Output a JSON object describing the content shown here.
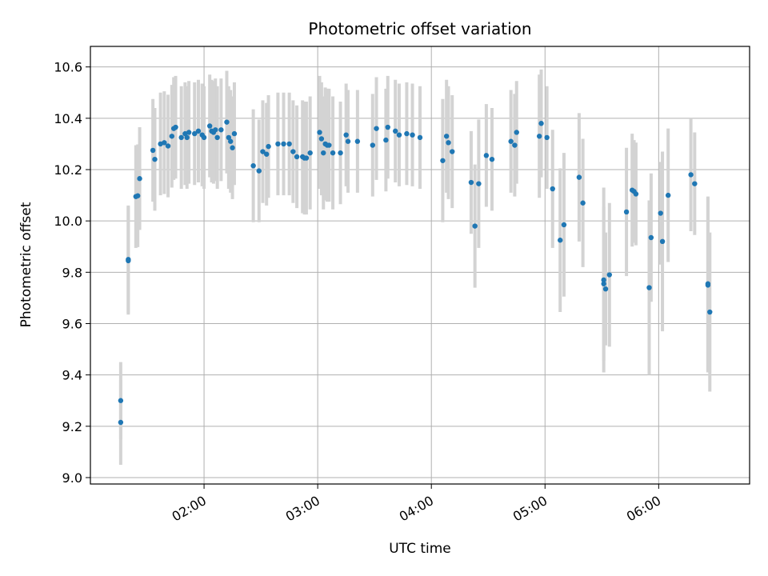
{
  "chart_data": {
    "type": "scatter",
    "title": "Photometric offset variation",
    "xlabel": "UTC time",
    "ylabel": "Photometric offset",
    "x_unit": "UTC time (HH:MM)",
    "xlim": [
      "01:00",
      "06:48"
    ],
    "ylim": [
      8.975,
      10.68
    ],
    "x_ticks": [
      "02:00",
      "03:00",
      "04:00",
      "05:00",
      "06:00"
    ],
    "y_ticks": [
      "9.0",
      "9.2",
      "9.4",
      "9.6",
      "9.8",
      "10.0",
      "10.2",
      "10.4",
      "10.6"
    ],
    "grid": true,
    "legend": "none",
    "colors": {
      "point": "#1f77b4",
      "errorbar": "#d3d3d3",
      "grid": "#b0b0b0"
    },
    "series": [
      {
        "marker": "point",
        "error_bars": "vertical",
        "points": [
          {
            "x": "01:16",
            "y": 9.215,
            "err": 0.165
          },
          {
            "x": "01:16",
            "y": 9.3,
            "err": 0.15
          },
          {
            "x": "01:20",
            "y": 9.845,
            "err": 0.21
          },
          {
            "x": "01:20",
            "y": 9.85,
            "err": 0.21
          },
          {
            "x": "01:24",
            "y": 10.095,
            "err": 0.2
          },
          {
            "x": "01:25",
            "y": 10.098,
            "err": 0.2
          },
          {
            "x": "01:26",
            "y": 10.165,
            "err": 0.2
          },
          {
            "x": "01:33",
            "y": 10.275,
            "err": 0.2
          },
          {
            "x": "01:34",
            "y": 10.24,
            "err": 0.2
          },
          {
            "x": "01:37",
            "y": 10.3,
            "err": 0.2
          },
          {
            "x": "01:39",
            "y": 10.305,
            "err": 0.2
          },
          {
            "x": "01:41",
            "y": 10.292,
            "err": 0.2
          },
          {
            "x": "01:43",
            "y": 10.33,
            "err": 0.2
          },
          {
            "x": "01:44",
            "y": 10.36,
            "err": 0.2
          },
          {
            "x": "01:45",
            "y": 10.365,
            "err": 0.2
          },
          {
            "x": "01:48",
            "y": 10.325,
            "err": 0.2
          },
          {
            "x": "01:50",
            "y": 10.34,
            "err": 0.2
          },
          {
            "x": "01:51",
            "y": 10.325,
            "err": 0.2
          },
          {
            "x": "01:52",
            "y": 10.345,
            "err": 0.2
          },
          {
            "x": "01:55",
            "y": 10.34,
            "err": 0.2
          },
          {
            "x": "01:57",
            "y": 10.35,
            "err": 0.2
          },
          {
            "x": "01:59",
            "y": 10.335,
            "err": 0.2
          },
          {
            "x": "02:00",
            "y": 10.325,
            "err": 0.2
          },
          {
            "x": "02:03",
            "y": 10.37,
            "err": 0.2
          },
          {
            "x": "02:04",
            "y": 10.35,
            "err": 0.2
          },
          {
            "x": "02:05",
            "y": 10.345,
            "err": 0.2
          },
          {
            "x": "02:06",
            "y": 10.355,
            "err": 0.2
          },
          {
            "x": "02:07",
            "y": 10.325,
            "err": 0.2
          },
          {
            "x": "02:09",
            "y": 10.355,
            "err": 0.2
          },
          {
            "x": "02:12",
            "y": 10.385,
            "err": 0.2
          },
          {
            "x": "02:13",
            "y": 10.325,
            "err": 0.2
          },
          {
            "x": "02:14",
            "y": 10.31,
            "err": 0.2
          },
          {
            "x": "02:15",
            "y": 10.285,
            "err": 0.2
          },
          {
            "x": "02:16",
            "y": 10.34,
            "err": 0.2
          },
          {
            "x": "02:26",
            "y": 10.215,
            "err": 0.22
          },
          {
            "x": "02:29",
            "y": 10.195,
            "err": 0.2
          },
          {
            "x": "02:31",
            "y": 10.27,
            "err": 0.2
          },
          {
            "x": "02:33",
            "y": 10.26,
            "err": 0.2
          },
          {
            "x": "02:34",
            "y": 10.29,
            "err": 0.2
          },
          {
            "x": "02:39",
            "y": 10.3,
            "err": 0.2
          },
          {
            "x": "02:42",
            "y": 10.3,
            "err": 0.2
          },
          {
            "x": "02:45",
            "y": 10.3,
            "err": 0.2
          },
          {
            "x": "02:47",
            "y": 10.27,
            "err": 0.2
          },
          {
            "x": "02:49",
            "y": 10.25,
            "err": 0.2
          },
          {
            "x": "02:52",
            "y": 10.25,
            "err": 0.22
          },
          {
            "x": "02:53",
            "y": 10.245,
            "err": 0.22
          },
          {
            "x": "02:54",
            "y": 10.245,
            "err": 0.22
          },
          {
            "x": "02:56",
            "y": 10.265,
            "err": 0.22
          },
          {
            "x": "03:01",
            "y": 10.345,
            "err": 0.22
          },
          {
            "x": "03:02",
            "y": 10.32,
            "err": 0.22
          },
          {
            "x": "03:03",
            "y": 10.265,
            "err": 0.22
          },
          {
            "x": "03:04",
            "y": 10.3,
            "err": 0.22
          },
          {
            "x": "03:05",
            "y": 10.295,
            "err": 0.22
          },
          {
            "x": "03:06",
            "y": 10.295,
            "err": 0.22
          },
          {
            "x": "03:08",
            "y": 10.265,
            "err": 0.22
          },
          {
            "x": "03:12",
            "y": 10.265,
            "err": 0.2
          },
          {
            "x": "03:15",
            "y": 10.335,
            "err": 0.2
          },
          {
            "x": "03:16",
            "y": 10.31,
            "err": 0.2
          },
          {
            "x": "03:21",
            "y": 10.31,
            "err": 0.2
          },
          {
            "x": "03:29",
            "y": 10.295,
            "err": 0.2
          },
          {
            "x": "03:31",
            "y": 10.36,
            "err": 0.2
          },
          {
            "x": "03:36",
            "y": 10.315,
            "err": 0.2
          },
          {
            "x": "03:37",
            "y": 10.365,
            "err": 0.2
          },
          {
            "x": "03:41",
            "y": 10.35,
            "err": 0.2
          },
          {
            "x": "03:43",
            "y": 10.335,
            "err": 0.2
          },
          {
            "x": "03:47",
            "y": 10.34,
            "err": 0.2
          },
          {
            "x": "03:50",
            "y": 10.335,
            "err": 0.2
          },
          {
            "x": "03:54",
            "y": 10.325,
            "err": 0.2
          },
          {
            "x": "04:06",
            "y": 10.235,
            "err": 0.24
          },
          {
            "x": "04:08",
            "y": 10.33,
            "err": 0.22
          },
          {
            "x": "04:09",
            "y": 10.305,
            "err": 0.22
          },
          {
            "x": "04:11",
            "y": 10.27,
            "err": 0.22
          },
          {
            "x": "04:21",
            "y": 10.15,
            "err": 0.2
          },
          {
            "x": "04:23",
            "y": 9.98,
            "err": 0.24
          },
          {
            "x": "04:25",
            "y": 10.145,
            "err": 0.25
          },
          {
            "x": "04:29",
            "y": 10.255,
            "err": 0.2
          },
          {
            "x": "04:32",
            "y": 10.24,
            "err": 0.2
          },
          {
            "x": "04:42",
            "y": 10.31,
            "err": 0.2
          },
          {
            "x": "04:44",
            "y": 10.295,
            "err": 0.2
          },
          {
            "x": "04:45",
            "y": 10.345,
            "err": 0.2
          },
          {
            "x": "04:57",
            "y": 10.33,
            "err": 0.24
          },
          {
            "x": "04:58",
            "y": 10.38,
            "err": 0.21
          },
          {
            "x": "05:01",
            "y": 10.325,
            "err": 0.2
          },
          {
            "x": "05:04",
            "y": 10.125,
            "err": 0.23
          },
          {
            "x": "05:08",
            "y": 9.925,
            "err": 0.28
          },
          {
            "x": "05:10",
            "y": 9.985,
            "err": 0.28
          },
          {
            "x": "05:18",
            "y": 10.17,
            "err": 0.25
          },
          {
            "x": "05:20",
            "y": 10.07,
            "err": 0.25
          },
          {
            "x": "05:31",
            "y": 9.77,
            "err": 0.36
          },
          {
            "x": "05:31",
            "y": 9.755,
            "err": 0.3
          },
          {
            "x": "05:32",
            "y": 9.735,
            "err": 0.22
          },
          {
            "x": "05:34",
            "y": 9.79,
            "err": 0.28
          },
          {
            "x": "05:43",
            "y": 10.035,
            "err": 0.25
          },
          {
            "x": "05:46",
            "y": 10.12,
            "err": 0.22
          },
          {
            "x": "05:47",
            "y": 10.115,
            "err": 0.2
          },
          {
            "x": "05:48",
            "y": 10.105,
            "err": 0.2
          },
          {
            "x": "05:55",
            "y": 9.74,
            "err": 0.34
          },
          {
            "x": "05:56",
            "y": 9.935,
            "err": 0.25
          },
          {
            "x": "06:01",
            "y": 10.03,
            "err": 0.2
          },
          {
            "x": "06:02",
            "y": 9.92,
            "err": 0.35
          },
          {
            "x": "06:05",
            "y": 10.1,
            "err": 0.26
          },
          {
            "x": "06:17",
            "y": 10.18,
            "err": 0.22
          },
          {
            "x": "06:19",
            "y": 10.145,
            "err": 0.2
          },
          {
            "x": "06:26",
            "y": 9.75,
            "err": 0.34
          },
          {
            "x": "06:26",
            "y": 9.755,
            "err": 0.34
          },
          {
            "x": "06:27",
            "y": 9.645,
            "err": 0.31
          }
        ]
      }
    ]
  }
}
